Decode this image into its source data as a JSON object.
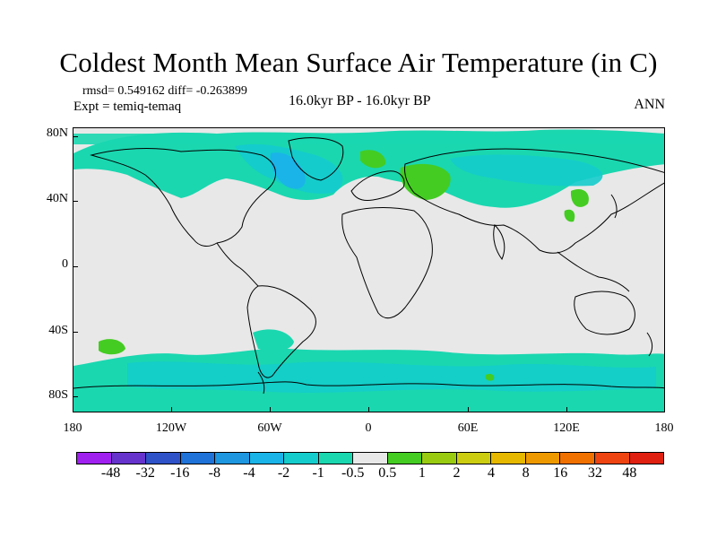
{
  "title": "Coldest Month Mean Surface Air Temperature (in C)",
  "stats": "rmsd= 0.549162 diff= -0.263899",
  "experiment": "Expt = temiq-temaq",
  "period": "16.0kyr BP - 16.0kyr BP",
  "season": "ANN",
  "lat_labels": [
    "80N",
    "40N",
    "0",
    "40S",
    "80S"
  ],
  "lon_labels": [
    "180",
    "120W",
    "60W",
    "0",
    "60E",
    "120E",
    "180"
  ],
  "colorbar": {
    "labels": [
      "-48",
      "-32",
      "-16",
      "-8",
      "-4",
      "-2",
      "-1",
      "-0.5",
      "0.5",
      "1",
      "2",
      "4",
      "8",
      "16",
      "32",
      "48"
    ],
    "colors": [
      "#a020f0",
      "#6633cc",
      "#2f52c8",
      "#1e72d8",
      "#1e96e0",
      "#1ab4e8",
      "#14cccc",
      "#1ad7b0",
      "#e8e8e8",
      "#44cc22",
      "#99cc11",
      "#cccc11",
      "#e6b800",
      "#ee9900",
      "#f07000",
      "#ee4411",
      "#e02010"
    ]
  }
}
